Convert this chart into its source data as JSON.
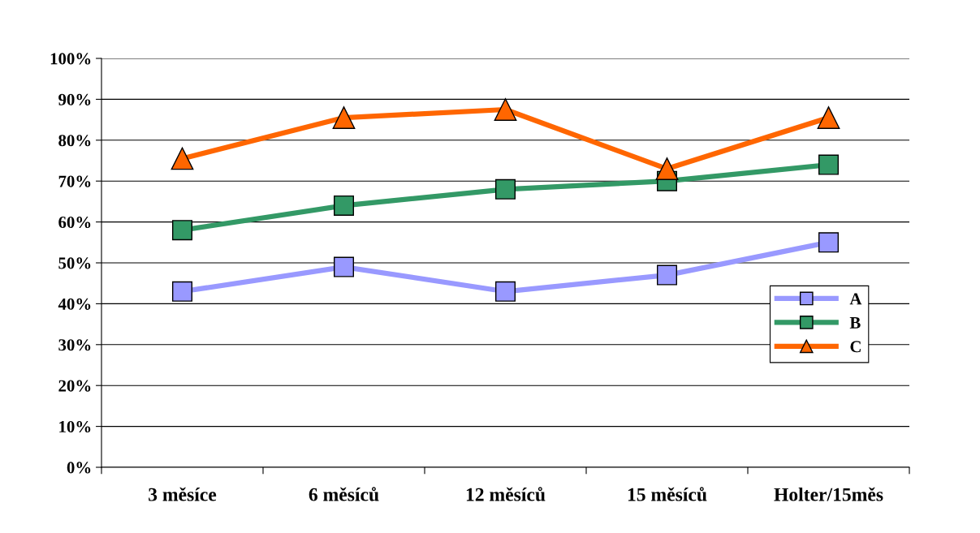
{
  "chart_data": {
    "type": "line",
    "categories": [
      "3 měsíce",
      "6 měsíců",
      "12 měsíců",
      "15 měsíců",
      "Holter/15měs"
    ],
    "series": [
      {
        "name": "A",
        "color": "#9999ff",
        "marker": "square",
        "values": [
          43,
          49,
          43,
          47,
          55
        ]
      },
      {
        "name": "B",
        "color": "#339966",
        "marker": "square",
        "values": [
          58,
          64,
          68,
          70,
          74
        ]
      },
      {
        "name": "C",
        "color": "#ff6600",
        "marker": "triangle",
        "values": [
          75.5,
          85.5,
          87.5,
          73,
          85.5
        ]
      }
    ],
    "ylim": [
      0,
      100
    ],
    "yticks": [
      {
        "value": 0,
        "label": "0%"
      },
      {
        "value": 10,
        "label": "10%"
      },
      {
        "value": 20,
        "label": "20%"
      },
      {
        "value": 30,
        "label": "30%"
      },
      {
        "value": 40,
        "label": "40%"
      },
      {
        "value": 50,
        "label": "50%"
      },
      {
        "value": 60,
        "label": "60%"
      },
      {
        "value": 70,
        "label": "70%"
      },
      {
        "value": 80,
        "label": "80%"
      },
      {
        "value": 90,
        "label": "90%"
      },
      {
        "value": 100,
        "label": "100%"
      }
    ],
    "grid": "y",
    "legend": "right",
    "line_style": "solid"
  }
}
